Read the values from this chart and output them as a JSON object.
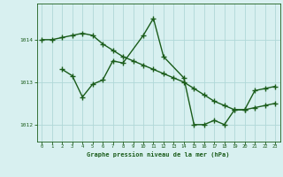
{
  "line1_x": [
    0,
    1,
    2,
    3,
    4,
    5,
    6,
    7,
    8,
    9,
    10,
    11,
    12,
    13,
    14,
    15,
    16,
    17,
    18,
    19,
    20,
    21,
    22,
    23
  ],
  "line1_y": [
    1014.0,
    1014.0,
    1014.05,
    1014.1,
    1014.15,
    1014.1,
    1013.9,
    1013.75,
    1013.6,
    1013.5,
    1013.4,
    1013.3,
    1013.2,
    1013.1,
    1013.0,
    1012.85,
    1012.7,
    1012.55,
    1012.45,
    1012.35,
    1012.35,
    1012.4,
    1012.45,
    1012.5
  ],
  "line2_x": [
    2,
    3,
    4,
    5,
    6,
    7,
    8,
    10,
    11,
    12,
    14,
    15,
    16,
    17,
    18,
    19,
    20,
    21,
    22,
    23
  ],
  "line2_y": [
    1013.3,
    1013.15,
    1012.65,
    1012.95,
    1013.05,
    1013.5,
    1013.45,
    1014.1,
    1014.5,
    1013.6,
    1013.1,
    1012.0,
    1012.0,
    1012.1,
    1012.0,
    1012.35,
    1012.35,
    1012.8,
    1012.85,
    1012.9
  ],
  "line_color": "#1a5c1a",
  "bg_color": "#d8f0f0",
  "grid_color": "#b0d8d8",
  "axis_color": "#1a5c1a",
  "xlabel": "Graphe pression niveau de la mer (hPa)",
  "yticks": [
    1012,
    1013,
    1014
  ],
  "xticks": [
    0,
    1,
    2,
    3,
    4,
    5,
    6,
    7,
    8,
    9,
    10,
    11,
    12,
    13,
    14,
    15,
    16,
    17,
    18,
    19,
    20,
    21,
    22,
    23
  ],
  "xlim": [
    -0.5,
    23.5
  ],
  "ylim": [
    1011.6,
    1014.85
  ],
  "marker": "+",
  "markersize": 4,
  "linewidth": 1.0
}
